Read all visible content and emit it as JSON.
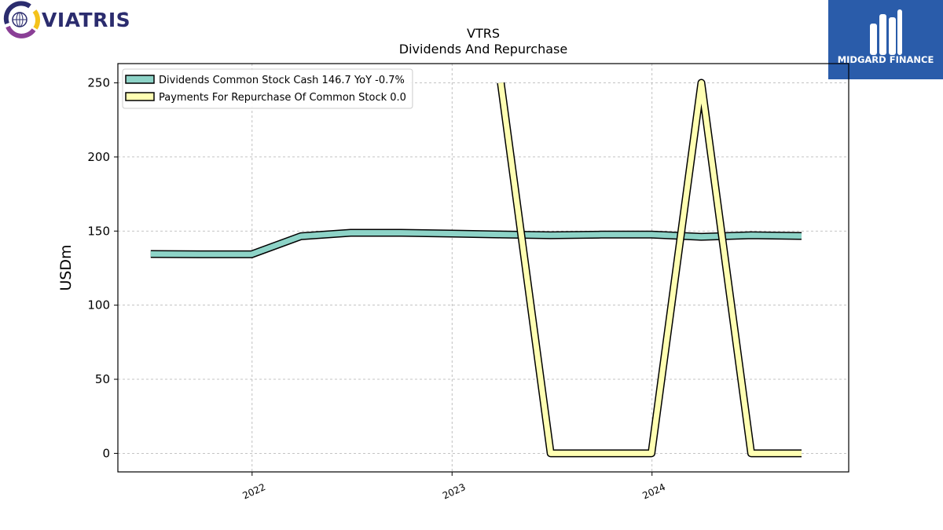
{
  "header": {
    "company_logo_text": "VIATRIS",
    "company_logo_tm": "™",
    "publisher_logo_text": "MIDGARD FINANCE"
  },
  "colors": {
    "dividends": "#8dd3c7",
    "repurchase": "#ffffb3",
    "outline": "#000000",
    "publisher_bg": "#2a5caa"
  },
  "chart_data": {
    "type": "line",
    "title": "VTRS",
    "subtitle": "Dividends And Repurchase",
    "xlabel": "",
    "ylabel": "USDm",
    "xlim": [
      "2021-05-01",
      "2024-12-25"
    ],
    "ylim": [
      -12.5,
      263
    ],
    "xticks": [
      {
        "date": "2022-01-01",
        "label": "2022"
      },
      {
        "date": "2023-01-01",
        "label": "2023"
      },
      {
        "date": "2024-01-01",
        "label": "2024"
      }
    ],
    "yticks": [
      0,
      50,
      100,
      150,
      200,
      250
    ],
    "grid": true,
    "legend_position": "top-left",
    "series": [
      {
        "name": "Dividends Common Stock Cash  146.7 YoY -0.7%",
        "color": "#8dd3c7",
        "points": [
          {
            "x": "2021-06-30",
            "y": 134.5
          },
          {
            "x": "2021-09-30",
            "y": 134.3
          },
          {
            "x": "2021-12-31",
            "y": 134.3
          },
          {
            "x": "2022-03-31",
            "y": 146.5
          },
          {
            "x": "2022-06-30",
            "y": 148.8
          },
          {
            "x": "2022-09-30",
            "y": 148.8
          },
          {
            "x": "2022-12-31",
            "y": 148.3
          },
          {
            "x": "2023-03-31",
            "y": 147.7
          },
          {
            "x": "2023-06-30",
            "y": 147.2
          },
          {
            "x": "2023-09-30",
            "y": 147.6
          },
          {
            "x": "2023-12-31",
            "y": 147.6
          },
          {
            "x": "2024-03-31",
            "y": 146.1
          },
          {
            "x": "2024-06-30",
            "y": 147.2
          },
          {
            "x": "2024-09-30",
            "y": 146.7
          }
        ]
      },
      {
        "name": "Payments For Repurchase Of Common Stock  0.0",
        "color": "#ffffb3",
        "points": [
          {
            "x": "2023-03-31",
            "y": 250
          },
          {
            "x": "2023-06-30",
            "y": 0
          },
          {
            "x": "2023-09-30",
            "y": 0
          },
          {
            "x": "2023-12-31",
            "y": 0
          },
          {
            "x": "2024-03-31",
            "y": 250
          },
          {
            "x": "2024-06-30",
            "y": 0
          },
          {
            "x": "2024-09-30",
            "y": 0
          }
        ]
      }
    ]
  }
}
